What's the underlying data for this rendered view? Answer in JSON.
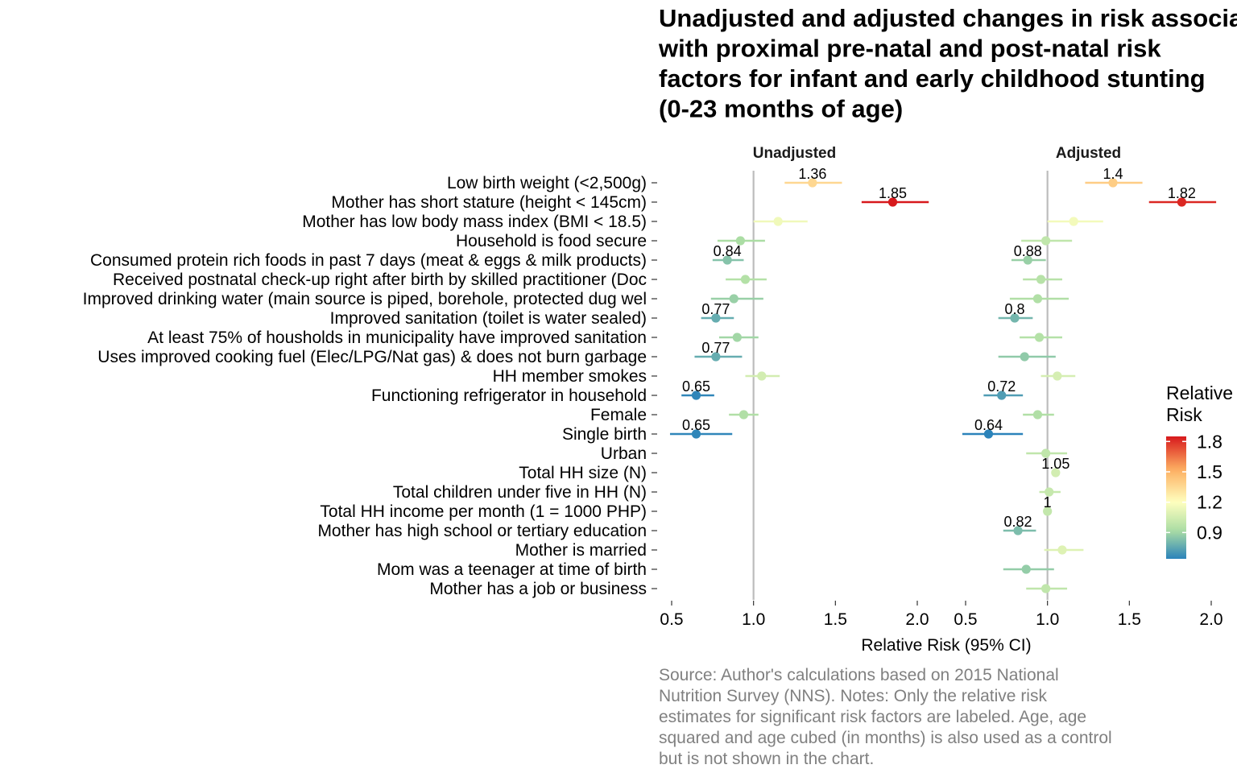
{
  "chart_data": {
    "type": "scatter",
    "title_lines": [
      "Unadjusted and adjusted changes in risk associated",
      "with proximal pre-natal and post-natal risk",
      "factors for infant and early childhood stunting",
      "(0-23 months of age)"
    ],
    "xlabel": "Relative Risk (95% CI)",
    "xlim": [
      0.5,
      2.0
    ],
    "xticks": [
      "0.5",
      "1.0",
      "1.5",
      "2.0"
    ],
    "reference_line": 1.0,
    "grid": false,
    "legend": {
      "title_lines": [
        "Relative",
        "Risk"
      ],
      "placement": "right",
      "ticks": [
        "1.8",
        "1.5",
        "1.2",
        "0.9"
      ],
      "tick_values": [
        1.8,
        1.5,
        1.2,
        0.9
      ],
      "range": [
        0.64,
        1.85
      ],
      "colors": [
        "#2b83ba",
        "#abdda4",
        "#ffffbf",
        "#fdae61",
        "#d7191c"
      ]
    },
    "caption_lines": [
      "Source: Author's calculations based on 2015 National",
      "Nutrition Survey (NNS). Notes: Only the relative risk",
      "estimates for significant risk factors are labeled. Age, age",
      "squared and age cubed (in months) is also used as a control",
      "but is not shown in the chart."
    ],
    "categories": [
      "Low birth weight (<2,500g)",
      "Mother has short stature (height < 145cm)",
      "Mother has low body mass index (BMI < 18.5)",
      "Household is food secure",
      "Consumed protein rich foods in past 7 days (meat & eggs & milk products)",
      "Received postnatal check-up right after birth by skilled practitioner (Doc",
      "Improved drinking water (main source is piped, borehole, protected dug wel",
      "Improved sanitation (toilet is water sealed)",
      "At least 75% of housholds in municipality have improved sanitation",
      "Uses improved cooking fuel (Elec/LPG/Nat gas) & does not burn garbage",
      "HH member smokes",
      "Functioning refrigerator in household",
      "Female",
      "Single birth",
      "Urban",
      "Total HH size (N)",
      "Total children under five in HH (N)",
      "Total HH income per month (1 = 1000 PHP)",
      "Mother has high school or tertiary education",
      "Mother is married",
      "Mom was a teenager at time of birth",
      "Mother has a job or business"
    ],
    "panels": [
      {
        "name": "Unadjusted",
        "series": [
          {
            "rr": 1.36,
            "lo": 1.19,
            "hi": 1.54,
            "label": "1.36"
          },
          {
            "rr": 1.85,
            "lo": 1.66,
            "hi": 2.07,
            "label": "1.85"
          },
          {
            "rr": 1.15,
            "lo": 1.0,
            "hi": 1.33,
            "label": ""
          },
          {
            "rr": 0.92,
            "lo": 0.78,
            "hi": 1.07,
            "label": ""
          },
          {
            "rr": 0.84,
            "lo": 0.75,
            "hi": 0.94,
            "label": "0.84"
          },
          {
            "rr": 0.95,
            "lo": 0.83,
            "hi": 1.08,
            "label": ""
          },
          {
            "rr": 0.88,
            "lo": 0.74,
            "hi": 1.06,
            "label": ""
          },
          {
            "rr": 0.77,
            "lo": 0.68,
            "hi": 0.88,
            "label": "0.77"
          },
          {
            "rr": 0.9,
            "lo": 0.79,
            "hi": 1.03,
            "label": ""
          },
          {
            "rr": 0.77,
            "lo": 0.64,
            "hi": 0.93,
            "label": "0.77"
          },
          {
            "rr": 1.05,
            "lo": 0.95,
            "hi": 1.16,
            "label": ""
          },
          {
            "rr": 0.65,
            "lo": 0.56,
            "hi": 0.76,
            "label": "0.65"
          },
          {
            "rr": 0.94,
            "lo": 0.85,
            "hi": 1.03,
            "label": ""
          },
          {
            "rr": 0.65,
            "lo": 0.49,
            "hi": 0.87,
            "label": "0.65"
          }
        ]
      },
      {
        "name": "Adjusted",
        "series": [
          {
            "rr": 1.4,
            "lo": 1.23,
            "hi": 1.58,
            "label": "1.4"
          },
          {
            "rr": 1.82,
            "lo": 1.62,
            "hi": 2.03,
            "label": "1.82"
          },
          {
            "rr": 1.16,
            "lo": 1.0,
            "hi": 1.34,
            "label": ""
          },
          {
            "rr": 0.99,
            "lo": 0.84,
            "hi": 1.15,
            "label": ""
          },
          {
            "rr": 0.88,
            "lo": 0.78,
            "hi": 0.99,
            "label": "0.88"
          },
          {
            "rr": 0.96,
            "lo": 0.85,
            "hi": 1.09,
            "label": ""
          },
          {
            "rr": 0.94,
            "lo": 0.77,
            "hi": 1.13,
            "label": ""
          },
          {
            "rr": 0.8,
            "lo": 0.7,
            "hi": 0.91,
            "label": "0.8"
          },
          {
            "rr": 0.95,
            "lo": 0.83,
            "hi": 1.09,
            "label": ""
          },
          {
            "rr": 0.86,
            "lo": 0.7,
            "hi": 1.05,
            "label": ""
          },
          {
            "rr": 1.06,
            "lo": 0.96,
            "hi": 1.17,
            "label": ""
          },
          {
            "rr": 0.72,
            "lo": 0.61,
            "hi": 0.85,
            "label": "0.72"
          },
          {
            "rr": 0.94,
            "lo": 0.85,
            "hi": 1.04,
            "label": ""
          },
          {
            "rr": 0.64,
            "lo": 0.48,
            "hi": 0.85,
            "label": "0.64"
          },
          {
            "rr": 0.99,
            "lo": 0.87,
            "hi": 1.12,
            "label": ""
          },
          {
            "rr": 1.05,
            "lo": 1.04,
            "hi": 1.06,
            "label": "1.05"
          },
          {
            "rr": 1.01,
            "lo": 0.95,
            "hi": 1.08,
            "label": ""
          },
          {
            "rr": 1.0,
            "lo": 0.995,
            "hi": 1.005,
            "label": "1"
          },
          {
            "rr": 0.82,
            "lo": 0.73,
            "hi": 0.93,
            "label": "0.82"
          },
          {
            "rr": 1.09,
            "lo": 0.98,
            "hi": 1.22,
            "label": ""
          },
          {
            "rr": 0.87,
            "lo": 0.73,
            "hi": 1.04,
            "label": ""
          },
          {
            "rr": 0.99,
            "lo": 0.87,
            "hi": 1.12,
            "label": ""
          }
        ]
      }
    ]
  }
}
